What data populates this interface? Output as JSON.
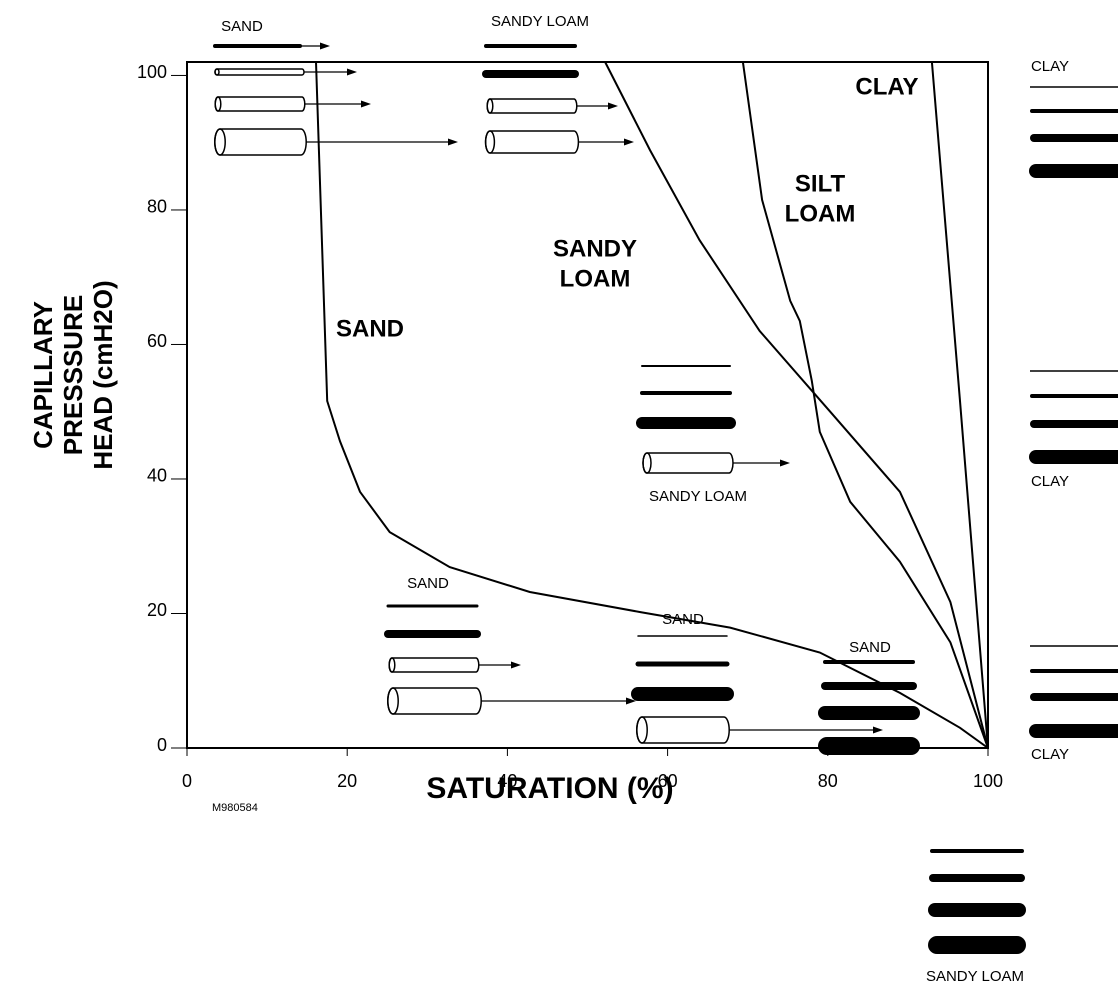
{
  "chart_data": {
    "type": "line",
    "x_label": "SATURATION (%)",
    "y_label": [
      "CAPILLARY",
      "PRESSSURE",
      "HEAD (cmH2O)"
    ],
    "figure_id": "M980584",
    "xlim": [
      0,
      100
    ],
    "xticks": [
      0,
      20,
      40,
      60,
      80,
      100
    ],
    "ylim": [
      0,
      102
    ],
    "yticks": [
      0,
      20,
      40,
      60,
      80,
      100
    ],
    "series": [
      {
        "name": "SAND",
        "color": "#000000",
        "x": [
          16.1,
          17.5,
          19.1,
          21.6,
          25.3,
          32.8,
          42.8,
          56.6,
          67.8,
          79,
          89,
          96.5,
          100
        ],
        "values": [
          102,
          51.6,
          45.6,
          38.1,
          32.1,
          26.9,
          23.2,
          20.2,
          17.9,
          14.2,
          8.2,
          3,
          0
        ]
      },
      {
        "name": "SANDY LOAM",
        "color": "#000000",
        "x": [
          52.2,
          57.8,
          64,
          71.5,
          80.3,
          89,
          95.3,
          100
        ],
        "values": [
          102,
          88.9,
          75.5,
          62,
          50,
          38.1,
          21.7,
          0
        ]
      },
      {
        "name": "SILT LOAM",
        "color": "#000000",
        "x": [
          69.4,
          71.8,
          75.3,
          76.5,
          78,
          79,
          82.8,
          89,
          95.3,
          100
        ],
        "values": [
          102,
          81.5,
          66.5,
          63.5,
          54.6,
          47,
          36.6,
          27.7,
          15.7,
          0
        ]
      },
      {
        "name": "CLAY",
        "color": "#000000",
        "x": [
          93,
          96.5,
          100
        ],
        "values": [
          102,
          51.6,
          0
        ]
      }
    ],
    "curve_labels": [
      [
        "SAND"
      ],
      [
        "SANDY",
        "LOAM"
      ],
      [
        "SILT",
        "LOAM"
      ],
      [
        "CLAY"
      ]
    ],
    "icon_labels": [
      "SAND",
      "SANDY LOAM",
      "SANDY LOAM",
      "SAND",
      "SAND",
      "SAND",
      "CLAY",
      "CLAY",
      "CLAY",
      "SANDY LOAM"
    ]
  }
}
